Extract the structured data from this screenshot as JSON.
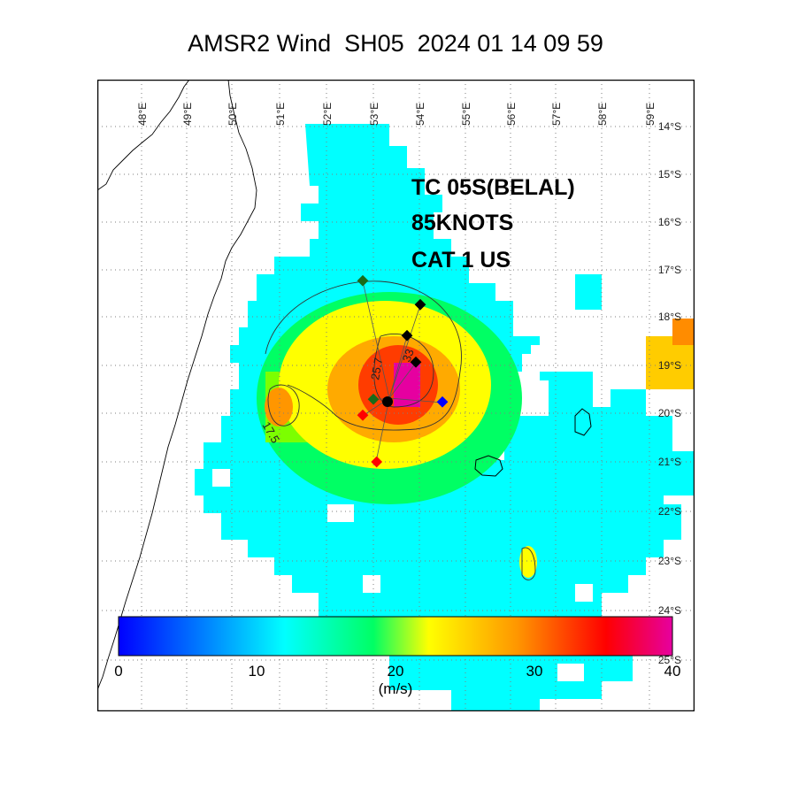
{
  "title": "AMSR2 Wind  SH05  2024 01 14 09 59",
  "annotation": {
    "lines": [
      "TC 05S(BELAL)",
      "85KNOTS",
      "CAT 1 US"
    ],
    "color": "#000000"
  },
  "longitude_labels": [
    "48°E",
    "49°E",
    "50°E",
    "51°E",
    "52°E",
    "53°E",
    "54°E",
    "55°E",
    "56°E",
    "57°E",
    "58°E",
    "59°E"
  ],
  "latitude_labels": [
    "14°S",
    "15°S",
    "16°S",
    "17°S",
    "18°S",
    "19°S",
    "20°S",
    "21°S",
    "22°S",
    "23°S",
    "24°S",
    "25°S"
  ],
  "contour_labels": [
    "25.7",
    "33",
    "17.5"
  ],
  "colorbar": {
    "ticks": [
      "0",
      "10",
      "20",
      "30",
      "40"
    ],
    "unit": "(m/s)",
    "min": 0,
    "max": 40,
    "colors": [
      "#0000ff",
      "#0096ff",
      "#00ffff",
      "#00ff64",
      "#ffff00",
      "#ff9600",
      "#ff0000",
      "#e600a0"
    ]
  },
  "map_colors": {
    "ocean": "#ffffff",
    "land_outline": "#000000",
    "grid": "#7f7f7f"
  }
}
